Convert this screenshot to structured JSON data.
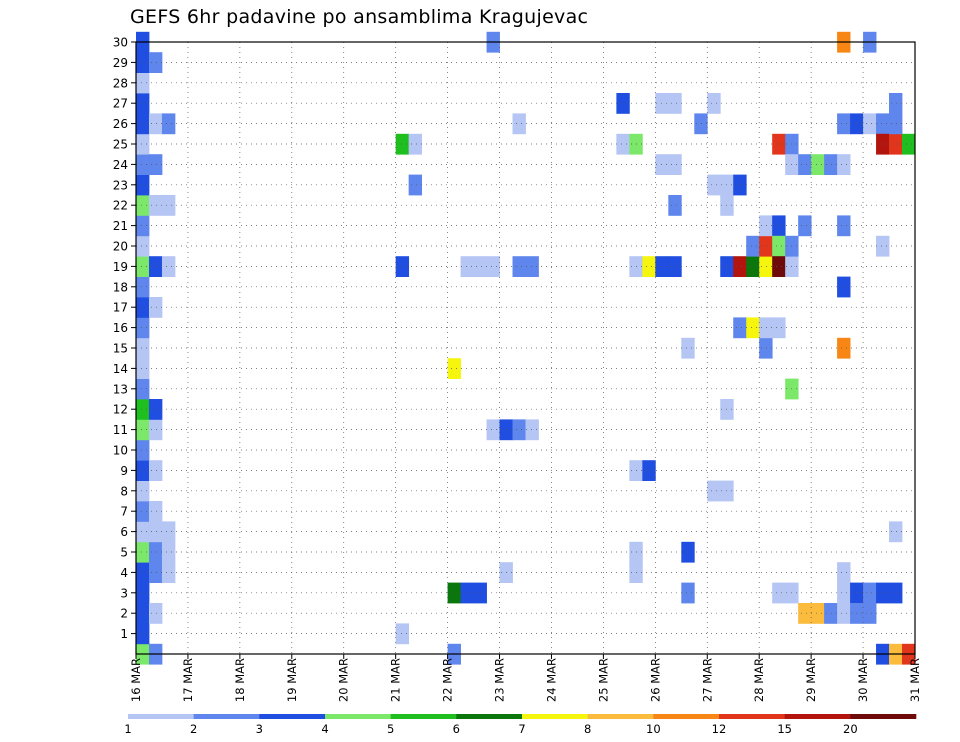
{
  "title": "GEFS 6hr padavine po ansamblima Kragujevac",
  "chart_data": {
    "type": "heatmap",
    "title": "GEFS 6hr padavine po ansamblima Kragujevac",
    "y_ticks": [
      1,
      2,
      3,
      4,
      5,
      6,
      7,
      8,
      9,
      10,
      11,
      12,
      13,
      14,
      15,
      16,
      17,
      18,
      19,
      20,
      21,
      22,
      23,
      24,
      25,
      26,
      27,
      28,
      29,
      30
    ],
    "x_ticks": [
      "16 MAR",
      "17 MAR",
      "18 MAR",
      "19 MAR",
      "20 MAR",
      "21 MAR",
      "22 MAR",
      "23 MAR",
      "24 MAR",
      "25 MAR",
      "26 MAR",
      "27 MAR",
      "28 MAR",
      "29 MAR",
      "30 MAR",
      "31 MAR"
    ],
    "x_steps_per_day": 4,
    "y_range": [
      0,
      30
    ],
    "grid": true,
    "colorbar": {
      "labels": [
        "1",
        "2",
        "3",
        "4",
        "5",
        "6",
        "7",
        "8",
        "10",
        "12",
        "15",
        "20"
      ],
      "colors": [
        "#b5c5f4",
        "#5f86ec",
        "#1f4ee0",
        "#7ce86a",
        "#1fbf1f",
        "#0b760b",
        "#f5f50e",
        "#fbbb3c",
        "#f88614",
        "#e1361c",
        "#b4140e",
        "#6e0a0a"
      ]
    },
    "cells": [
      {
        "day": "16 MAR",
        "step": 0,
        "member": 0,
        "level": 4
      },
      {
        "day": "16 MAR",
        "step": 0,
        "member": 1,
        "level": 3
      },
      {
        "day": "16 MAR",
        "step": 0,
        "member": 2,
        "level": 3
      },
      {
        "day": "16 MAR",
        "step": 0,
        "member": 3,
        "level": 3
      },
      {
        "day": "16 MAR",
        "step": 0,
        "member": 4,
        "level": 3
      },
      {
        "day": "16 MAR",
        "step": 0,
        "member": 5,
        "level": 4
      },
      {
        "day": "16 MAR",
        "step": 0,
        "member": 6,
        "level": 1
      },
      {
        "day": "16 MAR",
        "step": 0,
        "member": 7,
        "level": 2
      },
      {
        "day": "16 MAR",
        "step": 0,
        "member": 8,
        "level": 1
      },
      {
        "day": "16 MAR",
        "step": 0,
        "member": 9,
        "level": 3
      },
      {
        "day": "16 MAR",
        "step": 0,
        "member": 10,
        "level": 2
      },
      {
        "day": "16 MAR",
        "step": 0,
        "member": 11,
        "level": 4
      },
      {
        "day": "16 MAR",
        "step": 0,
        "member": 12,
        "level": 5
      },
      {
        "day": "16 MAR",
        "step": 0,
        "member": 13,
        "level": 2
      },
      {
        "day": "16 MAR",
        "step": 0,
        "member": 14,
        "level": 1
      },
      {
        "day": "16 MAR",
        "step": 0,
        "member": 15,
        "level": 1
      },
      {
        "day": "16 MAR",
        "step": 0,
        "member": 16,
        "level": 2
      },
      {
        "day": "16 MAR",
        "step": 0,
        "member": 17,
        "level": 3
      },
      {
        "day": "16 MAR",
        "step": 0,
        "member": 18,
        "level": 2
      },
      {
        "day": "16 MAR",
        "step": 0,
        "member": 19,
        "level": 4
      },
      {
        "day": "16 MAR",
        "step": 0,
        "member": 20,
        "level": 1
      },
      {
        "day": "16 MAR",
        "step": 0,
        "member": 21,
        "level": 2
      },
      {
        "day": "16 MAR",
        "step": 0,
        "member": 22,
        "level": 4
      },
      {
        "day": "16 MAR",
        "step": 0,
        "member": 23,
        "level": 3
      },
      {
        "day": "16 MAR",
        "step": 0,
        "member": 24,
        "level": 2
      },
      {
        "day": "16 MAR",
        "step": 0,
        "member": 25,
        "level": 1
      },
      {
        "day": "16 MAR",
        "step": 0,
        "member": 26,
        "level": 3
      },
      {
        "day": "16 MAR",
        "step": 0,
        "member": 27,
        "level": 3
      },
      {
        "day": "16 MAR",
        "step": 0,
        "member": 28,
        "level": 1
      },
      {
        "day": "16 MAR",
        "step": 0,
        "member": 29,
        "level": 3
      },
      {
        "day": "16 MAR",
        "step": 0,
        "member": 30,
        "level": 3
      },
      {
        "day": "16 MAR",
        "step": 1,
        "member": 0,
        "level": 2
      },
      {
        "day": "16 MAR",
        "step": 1,
        "member": 2,
        "level": 1
      },
      {
        "day": "16 MAR",
        "step": 1,
        "member": 4,
        "level": 2
      },
      {
        "day": "16 MAR",
        "step": 1,
        "member": 5,
        "level": 2
      },
      {
        "day": "16 MAR",
        "step": 1,
        "member": 6,
        "level": 1
      },
      {
        "day": "16 MAR",
        "step": 1,
        "member": 7,
        "level": 1
      },
      {
        "day": "16 MAR",
        "step": 1,
        "member": 9,
        "level": 1
      },
      {
        "day": "16 MAR",
        "step": 1,
        "member": 11,
        "level": 1
      },
      {
        "day": "16 MAR",
        "step": 1,
        "member": 12,
        "level": 3
      },
      {
        "day": "16 MAR",
        "step": 1,
        "member": 17,
        "level": 1
      },
      {
        "day": "16 MAR",
        "step": 1,
        "member": 19,
        "level": 3
      },
      {
        "day": "16 MAR",
        "step": 1,
        "member": 22,
        "level": 1
      },
      {
        "day": "16 MAR",
        "step": 1,
        "member": 24,
        "level": 2
      },
      {
        "day": "16 MAR",
        "step": 1,
        "member": 26,
        "level": 1
      },
      {
        "day": "16 MAR",
        "step": 1,
        "member": 29,
        "level": 2
      },
      {
        "day": "16 MAR",
        "step": 2,
        "member": 4,
        "level": 1
      },
      {
        "day": "16 MAR",
        "step": 2,
        "member": 5,
        "level": 1
      },
      {
        "day": "16 MAR",
        "step": 2,
        "member": 6,
        "level": 1
      },
      {
        "day": "16 MAR",
        "step": 2,
        "member": 19,
        "level": 1
      },
      {
        "day": "16 MAR",
        "step": 2,
        "member": 22,
        "level": 1
      },
      {
        "day": "16 MAR",
        "step": 2,
        "member": 26,
        "level": 2
      },
      {
        "day": "21 MAR",
        "step": 0,
        "member": 19,
        "level": 3
      },
      {
        "day": "21 MAR",
        "step": 0,
        "member": 1,
        "level": 1
      },
      {
        "day": "21 MAR",
        "step": 0,
        "member": 25,
        "level": 5
      },
      {
        "day": "21 MAR",
        "step": 1,
        "member": 25,
        "level": 1
      },
      {
        "day": "21 MAR",
        "step": 1,
        "member": 23,
        "level": 2
      },
      {
        "day": "22 MAR",
        "step": 0,
        "member": 14,
        "level": 7
      },
      {
        "day": "22 MAR",
        "step": 0,
        "member": 3,
        "level": 6
      },
      {
        "day": "22 MAR",
        "step": 0,
        "member": 0,
        "level": 2
      },
      {
        "day": "22 MAR",
        "step": 1,
        "member": 3,
        "level": 3
      },
      {
        "day": "22 MAR",
        "step": 2,
        "member": 3,
        "level": 3
      },
      {
        "day": "22 MAR",
        "step": 1,
        "member": 19,
        "level": 1
      },
      {
        "day": "22 MAR",
        "step": 2,
        "member": 19,
        "level": 1
      },
      {
        "day": "22 MAR",
        "step": 3,
        "member": 19,
        "level": 1
      },
      {
        "day": "22 MAR",
        "step": 3,
        "member": 11,
        "level": 1
      },
      {
        "day": "22 MAR",
        "step": 3,
        "member": 30,
        "level": 2
      },
      {
        "day": "23 MAR",
        "step": 0,
        "member": 11,
        "level": 3
      },
      {
        "day": "23 MAR",
        "step": 1,
        "member": 11,
        "level": 2
      },
      {
        "day": "23 MAR",
        "step": 0,
        "member": 4,
        "level": 1
      },
      {
        "day": "23 MAR",
        "step": 1,
        "member": 19,
        "level": 2
      },
      {
        "day": "23 MAR",
        "step": 2,
        "member": 19,
        "level": 2
      },
      {
        "day": "23 MAR",
        "step": 1,
        "member": 26,
        "level": 1
      },
      {
        "day": "23 MAR",
        "step": 2,
        "member": 11,
        "level": 1
      },
      {
        "day": "25 MAR",
        "step": 1,
        "member": 27,
        "level": 3
      },
      {
        "day": "25 MAR",
        "step": 1,
        "member": 25,
        "level": 1
      },
      {
        "day": "25 MAR",
        "step": 2,
        "member": 25,
        "level": 4
      },
      {
        "day": "25 MAR",
        "step": 2,
        "member": 19,
        "level": 1
      },
      {
        "day": "25 MAR",
        "step": 3,
        "member": 19,
        "level": 7
      },
      {
        "day": "25 MAR",
        "step": 2,
        "member": 9,
        "level": 1
      },
      {
        "day": "25 MAR",
        "step": 3,
        "member": 9,
        "level": 3
      },
      {
        "day": "25 MAR",
        "step": 2,
        "member": 5,
        "level": 1
      },
      {
        "day": "25 MAR",
        "step": 2,
        "member": 4,
        "level": 1
      },
      {
        "day": "26 MAR",
        "step": 0,
        "member": 19,
        "level": 3
      },
      {
        "day": "26 MAR",
        "step": 1,
        "member": 19,
        "level": 3
      },
      {
        "day": "26 MAR",
        "step": 0,
        "member": 27,
        "level": 1
      },
      {
        "day": "26 MAR",
        "step": 0,
        "member": 24,
        "level": 1
      },
      {
        "day": "26 MAR",
        "step": 1,
        "member": 24,
        "level": 1
      },
      {
        "day": "26 MAR",
        "step": 1,
        "member": 27,
        "level": 1
      },
      {
        "day": "26 MAR",
        "step": 1,
        "member": 22,
        "level": 2
      },
      {
        "day": "26 MAR",
        "step": 2,
        "member": 15,
        "level": 1
      },
      {
        "day": "26 MAR",
        "step": 2,
        "member": 5,
        "level": 3
      },
      {
        "day": "26 MAR",
        "step": 2,
        "member": 3,
        "level": 2
      },
      {
        "day": "26 MAR",
        "step": 3,
        "member": 26,
        "level": 2
      },
      {
        "day": "27 MAR",
        "step": 0,
        "member": 27,
        "level": 1
      },
      {
        "day": "27 MAR",
        "step": 0,
        "member": 23,
        "level": 1
      },
      {
        "day": "27 MAR",
        "step": 1,
        "member": 23,
        "level": 1
      },
      {
        "day": "27 MAR",
        "step": 0,
        "member": 8,
        "level": 1
      },
      {
        "day": "27 MAR",
        "step": 1,
        "member": 8,
        "level": 1
      },
      {
        "day": "27 MAR",
        "step": 1,
        "member": 22,
        "level": 1
      },
      {
        "day": "27 MAR",
        "step": 1,
        "member": 12,
        "level": 1
      },
      {
        "day": "27 MAR",
        "step": 2,
        "member": 23,
        "level": 3
      },
      {
        "day": "27 MAR",
        "step": 1,
        "member": 19,
        "level": 3
      },
      {
        "day": "27 MAR",
        "step": 2,
        "member": 19,
        "level": 11
      },
      {
        "day": "27 MAR",
        "step": 2,
        "member": 16,
        "level": 2
      },
      {
        "day": "27 MAR",
        "step": 3,
        "member": 16,
        "level": 7
      },
      {
        "day": "27 MAR",
        "step": 3,
        "member": 19,
        "level": 6
      },
      {
        "day": "27 MAR",
        "step": 3,
        "member": 20,
        "level": 2
      },
      {
        "day": "28 MAR",
        "step": 0,
        "member": 15,
        "level": 2
      },
      {
        "day": "28 MAR",
        "step": 0,
        "member": 16,
        "level": 1
      },
      {
        "day": "28 MAR",
        "step": 1,
        "member": 16,
        "level": 1
      },
      {
        "day": "28 MAR",
        "step": 0,
        "member": 19,
        "level": 7
      },
      {
        "day": "28 MAR",
        "step": 0,
        "member": 20,
        "level": 10
      },
      {
        "day": "28 MAR",
        "step": 0,
        "member": 21,
        "level": 1
      },
      {
        "day": "28 MAR",
        "step": 1,
        "member": 21,
        "level": 3
      },
      {
        "day": "28 MAR",
        "step": 1,
        "member": 20,
        "level": 4
      },
      {
        "day": "28 MAR",
        "step": 1,
        "member": 19,
        "level": 12
      },
      {
        "day": "28 MAR",
        "step": 1,
        "member": 25,
        "level": 10
      },
      {
        "day": "28 MAR",
        "step": 2,
        "member": 25,
        "level": 2
      },
      {
        "day": "28 MAR",
        "step": 1,
        "member": 3,
        "level": 1
      },
      {
        "day": "28 MAR",
        "step": 2,
        "member": 3,
        "level": 1
      },
      {
        "day": "28 MAR",
        "step": 2,
        "member": 19,
        "level": 1
      },
      {
        "day": "28 MAR",
        "step": 2,
        "member": 20,
        "level": 2
      },
      {
        "day": "28 MAR",
        "step": 2,
        "member": 13,
        "level": 4
      },
      {
        "day": "28 MAR",
        "step": 2,
        "member": 24,
        "level": 1
      },
      {
        "day": "28 MAR",
        "step": 3,
        "member": 24,
        "level": 2
      },
      {
        "day": "28 MAR",
        "step": 3,
        "member": 21,
        "level": 2
      },
      {
        "day": "28 MAR",
        "step": 3,
        "member": 2,
        "level": 8
      },
      {
        "day": "29 MAR",
        "step": 0,
        "member": 2,
        "level": 8
      },
      {
        "day": "29 MAR",
        "step": 0,
        "member": 24,
        "level": 4
      },
      {
        "day": "29 MAR",
        "step": 1,
        "member": 24,
        "level": 2
      },
      {
        "day": "29 MAR",
        "step": 1,
        "member": 2,
        "level": 2
      },
      {
        "day": "29 MAR",
        "step": 2,
        "member": 2,
        "level": 1
      },
      {
        "day": "29 MAR",
        "step": 2,
        "member": 3,
        "level": 1
      },
      {
        "day": "29 MAR",
        "step": 2,
        "member": 4,
        "level": 1
      },
      {
        "day": "29 MAR",
        "step": 2,
        "member": 24,
        "level": 1
      },
      {
        "day": "29 MAR",
        "step": 2,
        "member": 26,
        "level": 2
      },
      {
        "day": "29 MAR",
        "step": 2,
        "member": 21,
        "level": 2
      },
      {
        "day": "29 MAR",
        "step": 2,
        "member": 18,
        "level": 3
      },
      {
        "day": "29 MAR",
        "step": 2,
        "member": 15,
        "level": 9
      },
      {
        "day": "29 MAR",
        "step": 2,
        "member": 30,
        "level": 9
      },
      {
        "day": "29 MAR",
        "step": 3,
        "member": 26,
        "level": 3
      },
      {
        "day": "29 MAR",
        "step": 3,
        "member": 3,
        "level": 3
      },
      {
        "day": "29 MAR",
        "step": 3,
        "member": 2,
        "level": 2
      },
      {
        "day": "30 MAR",
        "step": 0,
        "member": 2,
        "level": 2
      },
      {
        "day": "30 MAR",
        "step": 0,
        "member": 3,
        "level": 2
      },
      {
        "day": "30 MAR",
        "step": 0,
        "member": 26,
        "level": 1
      },
      {
        "day": "30 MAR",
        "step": 0,
        "member": 30,
        "level": 2
      },
      {
        "day": "30 MAR",
        "step": 1,
        "member": 26,
        "level": 2
      },
      {
        "day": "30 MAR",
        "step": 1,
        "member": 25,
        "level": 11
      },
      {
        "day": "30 MAR",
        "step": 1,
        "member": 3,
        "level": 3
      },
      {
        "day": "30 MAR",
        "step": 1,
        "member": 0,
        "level": 3
      },
      {
        "day": "30 MAR",
        "step": 1,
        "member": 20,
        "level": 1
      },
      {
        "day": "30 MAR",
        "step": 2,
        "member": 25,
        "level": 10
      },
      {
        "day": "30 MAR",
        "step": 2,
        "member": 3,
        "level": 3
      },
      {
        "day": "30 MAR",
        "step": 2,
        "member": 26,
        "level": 2
      },
      {
        "day": "30 MAR",
        "step": 2,
        "member": 27,
        "level": 2
      },
      {
        "day": "30 MAR",
        "step": 2,
        "member": 6,
        "level": 1
      },
      {
        "day": "30 MAR",
        "step": 2,
        "member": 0,
        "level": 8
      },
      {
        "day": "30 MAR",
        "step": 3,
        "member": 25,
        "level": 5
      },
      {
        "day": "30 MAR",
        "step": 3,
        "member": 0,
        "level": 10
      }
    ]
  }
}
